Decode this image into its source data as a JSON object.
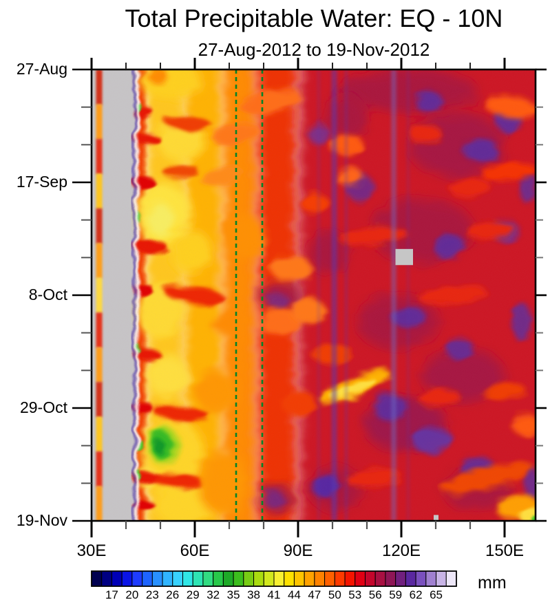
{
  "title": "Total Precipitable Water: EQ - 10N",
  "subtitle": "27-Aug-2012 to 19-Nov-2012",
  "chart_data": {
    "type": "heatmap",
    "description_visible": "time-longitude Hovmoller plot of total precipitable water",
    "x_axis": {
      "tick_labels": [
        "30E",
        "60E",
        "90E",
        "120E",
        "150E"
      ],
      "tick_values": [
        30,
        60,
        90,
        120,
        150
      ],
      "minor_tick_values": [
        40,
        50,
        70,
        80,
        100,
        110,
        130,
        140
      ],
      "range_lon": [
        30,
        159
      ]
    },
    "y_axis": {
      "tick_labels": [
        "27-Aug",
        "17-Sep",
        "8-Oct",
        "29-Oct",
        "19-Nov"
      ],
      "tick_days": [
        0,
        21,
        42,
        63,
        84
      ],
      "minor_tick_days": [
        7,
        14,
        28,
        35,
        49,
        56,
        70,
        77
      ],
      "range_days": [
        0,
        84
      ]
    },
    "colorbar": {
      "unit": "mm",
      "values": [
        17,
        20,
        23,
        26,
        29,
        32,
        35,
        38,
        41,
        44,
        47,
        50,
        53,
        56,
        59,
        62,
        65
      ],
      "min": 14,
      "max": 68,
      "step": 1.5,
      "colors": [
        "#000050",
        "#000082",
        "#0000B6",
        "#0A14E6",
        "#1E3CFF",
        "#1E64FF",
        "#2890FF",
        "#30B4FF",
        "#38D2FF",
        "#30E6E6",
        "#2EE4B4",
        "#32DC82",
        "#28C84A",
        "#1EAA28",
        "#3CBE1E",
        "#78CC14",
        "#AADC10",
        "#D2E81E",
        "#F8F032",
        "#FFE100",
        "#FFC400",
        "#FFA200",
        "#FF8200",
        "#FF6000",
        "#FF3A00",
        "#F51400",
        "#E00014",
        "#C4062C",
        "#A81042",
        "#8E1656",
        "#70207E",
        "#5A28A0",
        "#7A50BE",
        "#A080D0",
        "#C8B4E6",
        "#EDE7F8"
      ]
    },
    "annotations": {
      "dashed_lines_lon": [
        72,
        79.6
      ],
      "dashed_line_color": "#008428",
      "missing_data_color": "#C6C6C6",
      "missing_rects": [
        {
          "lon0": 118.3,
          "lon1": 123.4,
          "day0": 33.4,
          "day1": 36.4
        },
        {
          "lon0": 129.4,
          "lon1": 130.8,
          "day0": 82.9,
          "day1": 84
        }
      ],
      "gray_band": {
        "lon0": 30.15,
        "lon1": 43.3
      },
      "land_stripe": {
        "lon0": 31.3,
        "lon1": 33.1,
        "segments": [
          "#D43214",
          "#FF9E14",
          "#E63214",
          "#FFC81E",
          "#D43214",
          "#FFA014",
          "#FFDC3C",
          "#E63214",
          "#FF9E14",
          "#D43214",
          "#FFC81E",
          "#E63214",
          "#FF9E14"
        ]
      },
      "west_edge_line": {
        "lon0": 42.1,
        "lon1": 42.65,
        "c": "#3C2CA8",
        "op": 0.9
      },
      "west_edge_white": {
        "lon0": 42.65,
        "lon1": 43.7,
        "c": "#FAFAFA",
        "op": 0.88
      }
    },
    "field": {
      "base_bands": [
        {
          "lon0": 43.2,
          "lon1": 46,
          "c": "#F03000",
          "b": 3
        },
        {
          "lon0": 46,
          "lon1": 57,
          "c": "#FFC81E",
          "b": 7
        },
        {
          "lon0": 57,
          "lon1": 68,
          "c": "#FFB400",
          "b": 7
        },
        {
          "lon0": 68,
          "lon1": 78,
          "c": "#FF8C00",
          "b": 7
        },
        {
          "lon0": 78,
          "lon1": 90,
          "c": "#EE3000",
          "b": 8
        },
        {
          "lon0": 90,
          "lon1": 163,
          "c": "#CC1622",
          "b": 8
        }
      ],
      "vstreaks": [
        {
          "lon": 100.5,
          "w": 1.6,
          "c": "#5438B4",
          "op": 0.5
        },
        {
          "lon": 104,
          "w": 0.9,
          "c": "#5438B4",
          "op": 0.28
        },
        {
          "lon": 117.8,
          "w": 1.5,
          "c": "#6E6EC8",
          "op": 0.45
        },
        {
          "lon": 96,
          "w": 0.8,
          "c": "#5438B4",
          "op": 0.22
        },
        {
          "lon": 122,
          "w": 0.8,
          "c": "#5438B4",
          "op": 0.2
        }
      ],
      "features": [
        {
          "l": 53,
          "d": 2,
          "rl": 9,
          "rd": 3.5,
          "c": "#FFD21E",
          "b": 6
        },
        {
          "l": 49,
          "d": 1,
          "rl": 3,
          "rd": 1.5,
          "c": "#FF8C00",
          "b": 4
        },
        {
          "l": 56,
          "d": 13,
          "rl": 7,
          "rd": 4,
          "c": "#FFDC32",
          "b": 6
        },
        {
          "l": 51,
          "d": 27,
          "rl": 8,
          "rd": 6,
          "c": "#FFE63C",
          "b": 7
        },
        {
          "l": 50,
          "d": 28,
          "rl": 4,
          "rd": 3,
          "c": "#F8F060",
          "b": 5
        },
        {
          "l": 59,
          "d": 34,
          "rl": 6,
          "rd": 4,
          "c": "#FFD21E",
          "b": 6
        },
        {
          "l": 50,
          "d": 45,
          "rl": 7,
          "rd": 5,
          "c": "#FFDC32",
          "b": 6
        },
        {
          "l": 52,
          "d": 57,
          "rl": 6,
          "rd": 4,
          "c": "#FFE13C",
          "b": 6
        },
        {
          "l": 54,
          "d": 72,
          "rl": 9,
          "rd": 7,
          "c": "#FFD728",
          "b": 7
        },
        {
          "l": 51,
          "d": 70,
          "rl": 4.5,
          "rd": 3.5,
          "c": "#A0D81E",
          "b": 4
        },
        {
          "l": 50.5,
          "d": 70,
          "rl": 3,
          "rd": 2.6,
          "c": "#33BB22",
          "b": 3
        },
        {
          "l": 49.8,
          "d": 70.3,
          "rl": 1.5,
          "rd": 1.4,
          "c": "#0F9A28",
          "b": 2
        },
        {
          "l": 58,
          "d": 81,
          "rl": 10,
          "rd": 4,
          "c": "#FFD728",
          "b": 6
        },
        {
          "l": 46,
          "d": 76,
          "rl": 3,
          "rd": 2,
          "c": "#FFE13C",
          "b": 4
        },
        {
          "l": 45,
          "d": 8,
          "rl": 3,
          "rd": 1.1,
          "c": "#E81400",
          "b": 2.5
        },
        {
          "l": 46,
          "d": 13,
          "rl": 4,
          "rd": 1,
          "c": "#E81400",
          "b": 2.5
        },
        {
          "l": 45,
          "d": 21,
          "rl": 3.5,
          "rd": 1.1,
          "c": "#E00000",
          "b": 2.5
        },
        {
          "l": 47,
          "d": 33,
          "rl": 5,
          "rd": 1.2,
          "c": "#E81400",
          "b": 2.5
        },
        {
          "l": 45,
          "d": 41,
          "rl": 3,
          "rd": 1,
          "c": "#E00000",
          "b": 2.5
        },
        {
          "l": 46,
          "d": 53,
          "rl": 4,
          "rd": 1.1,
          "c": "#E81400",
          "b": 2.5
        },
        {
          "l": 45,
          "d": 63,
          "rl": 3,
          "rd": 1,
          "c": "#E00000",
          "b": 2.5
        },
        {
          "l": 46,
          "d": 76,
          "rl": 4.5,
          "rd": 1.1,
          "c": "#E81400",
          "b": 2.5
        },
        {
          "l": 45,
          "d": 81,
          "rl": 3,
          "rd": 1,
          "c": "#E00000",
          "b": 2.5
        },
        {
          "l": 43.6,
          "d": 7,
          "rl": 0.7,
          "rd": 0.9,
          "c": "#44CC22",
          "b": 1.5
        },
        {
          "l": 43.6,
          "d": 27.5,
          "rl": 0.7,
          "rd": 1,
          "c": "#44CC22",
          "b": 1.5
        },
        {
          "l": 43.6,
          "d": 52,
          "rl": 0.6,
          "rd": 0.8,
          "c": "#44CC22",
          "b": 1.5
        },
        {
          "l": 44,
          "d": 70,
          "rl": 0.8,
          "rd": 1.3,
          "c": "#44CC22",
          "b": 1.5
        },
        {
          "l": 43.8,
          "d": 75.5,
          "rl": 0.6,
          "rd": 0.9,
          "c": "#44CC22",
          "b": 1.5
        },
        {
          "l": 82,
          "d": 6,
          "rl": 9,
          "rd": 2.2,
          "c": "#FF6E14",
          "rot": -10,
          "b": 4
        },
        {
          "l": 72,
          "d": 12,
          "rl": 7,
          "rd": 1.8,
          "c": "#FF7814",
          "rot": -12,
          "b": 4
        },
        {
          "l": 68,
          "d": 20,
          "rl": 6,
          "rd": 1.6,
          "c": "#FF8C14",
          "rot": -14,
          "b": 4
        },
        {
          "l": 74,
          "d": 31,
          "rl": 6,
          "rd": 4,
          "c": "#FF9100",
          "b": 6
        },
        {
          "l": 70,
          "d": 47,
          "rl": 5,
          "rd": 2,
          "c": "#FF8C00",
          "rot": -15,
          "b": 5
        },
        {
          "l": 66,
          "d": 60,
          "rl": 6,
          "rd": 4,
          "c": "#FF9800",
          "b": 6
        },
        {
          "l": 68,
          "d": 77,
          "rl": 7,
          "rd": 6,
          "c": "#FF9800",
          "b": 7
        },
        {
          "l": 58,
          "d": 10,
          "rl": 7,
          "rd": 1.4,
          "c": "#F03C00",
          "rot": 6,
          "b": 3
        },
        {
          "l": 56,
          "d": 19,
          "rl": 5,
          "rd": 1.2,
          "c": "#F04600",
          "rot": -5,
          "b": 3
        },
        {
          "l": 60,
          "d": 42,
          "rl": 9,
          "rd": 1.6,
          "c": "#EE2800",
          "rot": 8,
          "b": 3
        },
        {
          "l": 56,
          "d": 64,
          "rl": 8,
          "rd": 1.5,
          "c": "#EE2800",
          "rot": 5,
          "b": 3
        },
        {
          "l": 55,
          "d": 76.5,
          "rl": 7,
          "rd": 1.4,
          "c": "#EE2800",
          "rot": 3,
          "b": 3
        },
        {
          "l": 122,
          "d": 4,
          "rl": 20,
          "rd": 4,
          "c": "#A41240",
          "b": 8,
          "op": 0.85
        },
        {
          "l": 136,
          "d": 14,
          "rl": 14,
          "rd": 6,
          "c": "#A01444",
          "b": 8,
          "op": 0.85
        },
        {
          "l": 104,
          "d": 9,
          "rl": 6,
          "rd": 4,
          "c": "#A41240",
          "b": 8,
          "op": 0.85
        },
        {
          "l": 126,
          "d": 30,
          "rl": 15,
          "rd": 6,
          "c": "#A41240",
          "b": 8,
          "op": 0.85
        },
        {
          "l": 99,
          "d": 34,
          "rl": 6,
          "rd": 4,
          "c": "#A41240",
          "b": 8,
          "op": 0.85
        },
        {
          "l": 85,
          "d": 42,
          "rl": 6,
          "rd": 3,
          "c": "#9A1650",
          "b": 8,
          "op": 0.8
        },
        {
          "l": 119,
          "d": 47,
          "rl": 12,
          "rd": 5,
          "c": "#A41240",
          "b": 8,
          "op": 0.85
        },
        {
          "l": 138,
          "d": 57,
          "rl": 12,
          "rd": 5,
          "c": "#A01444",
          "b": 8,
          "op": 0.85
        },
        {
          "l": 121,
          "d": 66,
          "rl": 12,
          "rd": 5,
          "c": "#96164E",
          "b": 8,
          "op": 0.85
        },
        {
          "l": 101,
          "d": 78,
          "rl": 8,
          "rd": 4,
          "c": "#A41240",
          "b": 8,
          "op": 0.85
        },
        {
          "l": 142,
          "d": 78,
          "rl": 10,
          "rd": 4,
          "c": "#A41240",
          "b": 8,
          "op": 0.85
        },
        {
          "l": 84,
          "d": 80,
          "rl": 5,
          "rd": 3,
          "c": "#9A1650",
          "b": 8,
          "op": 0.8
        },
        {
          "l": 128,
          "d": 6,
          "rl": 4,
          "rd": 2,
          "c": "#5A2FA0",
          "b": 4,
          "op": 0.9
        },
        {
          "l": 151,
          "d": 9,
          "rl": 4,
          "rd": 2.6,
          "c": "#5A2FA0",
          "b": 4,
          "op": 0.9
        },
        {
          "l": 143,
          "d": 15,
          "rl": 5,
          "rd": 2.2,
          "c": "#5A2FA0",
          "b": 4,
          "op": 0.9
        },
        {
          "l": 96,
          "d": 12,
          "rl": 3,
          "rd": 2,
          "c": "#6038AC",
          "b": 4,
          "op": 0.7
        },
        {
          "l": 108,
          "d": 22,
          "rl": 4,
          "rd": 2.6,
          "c": "#5A2FA0",
          "b": 4,
          "op": 0.75
        },
        {
          "l": 134,
          "d": 33,
          "rl": 4.5,
          "rd": 2.4,
          "c": "#5A2FA0",
          "b": 4,
          "op": 0.9
        },
        {
          "l": 150,
          "d": 30,
          "rl": 4,
          "rd": 2,
          "c": "#5F35A8",
          "b": 4,
          "op": 0.9
        },
        {
          "l": 157,
          "d": 22,
          "rl": 2.5,
          "rd": 3,
          "c": "#5A2FA0",
          "b": 4,
          "op": 0.8
        },
        {
          "l": 122,
          "d": 46,
          "rl": 5,
          "rd": 2,
          "c": "#5A2FA0",
          "b": 4,
          "op": 0.9
        },
        {
          "l": 137,
          "d": 52,
          "rl": 4,
          "rd": 2,
          "c": "#5A2FA0",
          "b": 4,
          "op": 0.85
        },
        {
          "l": 155,
          "d": 47,
          "rl": 3,
          "rd": 3.5,
          "c": "#5A2FA0",
          "b": 4,
          "op": 0.8
        },
        {
          "l": 117,
          "d": 63,
          "rl": 5,
          "rd": 2.4,
          "c": "#5A2FA0",
          "b": 4,
          "op": 0.9
        },
        {
          "l": 129,
          "d": 69,
          "rl": 6,
          "rd": 2.4,
          "c": "#5F35A8",
          "b": 4,
          "op": 0.9
        },
        {
          "l": 142,
          "d": 74,
          "rl": 5,
          "rd": 2,
          "c": "#5A2FA0",
          "b": 4,
          "op": 0.85
        },
        {
          "l": 98,
          "d": 77.5,
          "rl": 4,
          "rd": 2.2,
          "c": "#4E2CAC",
          "b": 4,
          "op": 0.9
        },
        {
          "l": 158,
          "d": 77,
          "rl": 2.5,
          "rd": 3,
          "c": "#5A2FA0",
          "b": 4,
          "op": 0.8
        },
        {
          "l": 84,
          "d": 43,
          "rl": 3,
          "rd": 1.6,
          "c": "#64309C",
          "b": 4,
          "op": 0.6
        },
        {
          "l": 83,
          "d": 80,
          "rl": 3,
          "rd": 1.6,
          "c": "#5A2FA0",
          "b": 4,
          "op": 0.6
        },
        {
          "l": 104,
          "d": 14,
          "rl": 5,
          "rd": 2,
          "c": "#FF5A0A",
          "b": 4
        },
        {
          "l": 105,
          "d": 20,
          "rl": 4,
          "rd": 1.8,
          "c": "#FF6414",
          "b": 4
        },
        {
          "l": 95,
          "d": 25,
          "rl": 4,
          "rd": 2,
          "c": "#F53C00",
          "b": 4
        },
        {
          "l": 88,
          "d": 37,
          "rl": 6,
          "rd": 2.4,
          "c": "#FF7814",
          "b": 4
        },
        {
          "l": 85,
          "d": 47,
          "rl": 6,
          "rd": 2.6,
          "c": "#FF6E14",
          "b": 4
        },
        {
          "l": 93,
          "d": 45,
          "rl": 5,
          "rd": 2.4,
          "c": "#FF7814",
          "b": 4
        },
        {
          "l": 106.5,
          "d": 59,
          "rl": 11,
          "rd": 1.8,
          "c": "#FFB400",
          "rot": -22,
          "b": 3.5
        },
        {
          "l": 106,
          "d": 59.5,
          "rl": 7,
          "rd": 1,
          "c": "#FFE13C",
          "rot": -22,
          "b": 2.5
        },
        {
          "l": 152,
          "d": 7,
          "rl": 8,
          "rd": 2,
          "c": "#FF5A0A",
          "rot": 8,
          "b": 4
        },
        {
          "l": 151,
          "d": 19,
          "rl": 8,
          "rd": 1.8,
          "c": "#F53200",
          "rot": -7,
          "b": 4
        },
        {
          "l": 146,
          "d": 30,
          "rl": 7,
          "rd": 1.6,
          "c": "#E82810",
          "rot": -5,
          "b": 4
        },
        {
          "l": 112,
          "d": 31,
          "rl": 10,
          "rd": 1.8,
          "c": "#E82810",
          "rot": -4,
          "b": 4
        },
        {
          "l": 100,
          "d": 53,
          "rl": 6,
          "rd": 1.8,
          "c": "#F03C00",
          "b": 4
        },
        {
          "l": 135,
          "d": 42,
          "rl": 10,
          "rd": 1.8,
          "c": "#E82810",
          "rot": -5,
          "b": 4
        },
        {
          "l": 90,
          "d": 62,
          "rl": 5,
          "rd": 2.4,
          "c": "#F23C00",
          "b": 4
        },
        {
          "l": 112,
          "d": 76,
          "rl": 8,
          "rd": 1.8,
          "c": "#E82810",
          "rot": -6,
          "b": 4
        },
        {
          "l": 145,
          "d": 76,
          "rl": 14,
          "rd": 2,
          "c": "#F04600",
          "rot": -13,
          "b": 4
        },
        {
          "l": 154,
          "d": 81.5,
          "rl": 6,
          "rd": 2.4,
          "c": "#FFA000",
          "rot": -10,
          "b": 4
        },
        {
          "l": 157.5,
          "d": 83,
          "rl": 3,
          "rd": 1.8,
          "c": "#FFE13C",
          "b": 3
        },
        {
          "l": 158.7,
          "d": 84,
          "rl": 1,
          "rd": 0.9,
          "c": "#44CC22",
          "b": 1.5
        },
        {
          "l": 150,
          "d": 60,
          "rl": 6,
          "rd": 1.6,
          "c": "#F03C00",
          "rot": -8,
          "b": 4
        },
        {
          "l": 156,
          "d": 66,
          "rl": 4,
          "rd": 2,
          "c": "#FF5A0A",
          "b": 4
        },
        {
          "l": 127,
          "d": 12,
          "rl": 5,
          "rd": 1.6,
          "c": "#E82810",
          "b": 4
        },
        {
          "l": 140,
          "d": 22,
          "rl": 6,
          "rd": 1.6,
          "c": "#E82810",
          "rot": -6,
          "b": 4
        },
        {
          "l": 131,
          "d": 61,
          "rl": 6,
          "rd": 1.6,
          "c": "#E82810",
          "rot": -4,
          "b": 4
        }
      ]
    }
  }
}
